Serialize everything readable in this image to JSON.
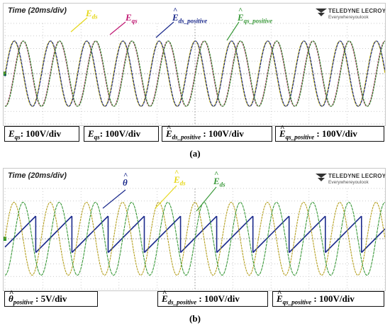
{
  "chart_data": [
    {
      "type": "line",
      "panel": "(a)",
      "time_label": "Time (20ms/div)",
      "grid": true,
      "x_divisions": 10,
      "y_divisions": 8,
      "cycles_shown": 10.5,
      "signal_labels": [
        {
          "symbol": "E",
          "hat": false,
          "sub": "ds",
          "color": "#e6d81c"
        },
        {
          "symbol": "E",
          "hat": false,
          "sub": "qs",
          "color": "#c01873"
        },
        {
          "symbol": "E",
          "hat": true,
          "sub": "ds_positive",
          "color": "#1b2a8c"
        },
        {
          "symbol": "E",
          "hat": true,
          "sub": "qs_positive",
          "color": "#3c9a3c"
        }
      ],
      "series": [
        {
          "name": "Eds",
          "color": "#c8b400",
          "amplitude_div": 2.6,
          "phase_deg": 0
        },
        {
          "name": "Eqs",
          "color": "#b02a62",
          "amplitude_div": 2.6,
          "phase_deg": -90
        },
        {
          "name": "Eds_positive",
          "color": "#1b2a8c",
          "amplitude_div": 2.6,
          "phase_deg": -5
        },
        {
          "name": "Eqs_positive",
          "color": "#2f8f2f",
          "amplitude_div": 2.6,
          "phase_deg": -95
        }
      ],
      "scales": [
        {
          "symbol": "E",
          "hat": false,
          "sub": "qs",
          "text": ": 100V/div"
        },
        {
          "symbol": "E",
          "hat": false,
          "sub": "qs",
          "text": ": 100V/div"
        },
        {
          "symbol": "E",
          "hat": true,
          "sub": "ds_positive",
          "text": " : 100V/div"
        },
        {
          "symbol": "E",
          "hat": true,
          "sub": "qs_positive",
          "text": " : 100V/div"
        }
      ],
      "caption": "(a)"
    },
    {
      "type": "line",
      "panel": "(b)",
      "time_label": "Time (20ms/div)",
      "grid": true,
      "x_divisions": 10,
      "y_divisions": 8,
      "cycles_shown": 10.5,
      "signal_labels": [
        {
          "symbol": "θ",
          "hat": true,
          "sub": "",
          "color": "#1b2a8c"
        },
        {
          "symbol": "E",
          "hat": true,
          "sub": "ds",
          "color": "#e6d81c"
        },
        {
          "symbol": "E",
          "hat": true,
          "sub": "ds",
          "color": "#3c9a3c"
        }
      ],
      "series": [
        {
          "name": "theta_positive",
          "color": "#1b2a8c",
          "kind": "sawtooth"
        },
        {
          "name": "Eds_positive",
          "color": "#b5a020",
          "amplitude_div": 2.9,
          "phase_deg": 0
        },
        {
          "name": "Eqs_positive",
          "color": "#3c9a3c",
          "amplitude_div": 2.9,
          "phase_deg": -90
        }
      ],
      "scales": [
        {
          "symbol": "θ",
          "hat": true,
          "sub": "positive",
          "text": " : 5V/div"
        },
        {
          "symbol": "E",
          "hat": true,
          "sub": "ds_positive",
          "text": " : 100V/div"
        },
        {
          "symbol": "E",
          "hat": true,
          "sub": "qs_positive",
          "text": " : 100V/div"
        }
      ],
      "caption": "(b)"
    }
  ],
  "logo": {
    "brand": "TELEDYNE LECROY",
    "slogan": "Everywhereyoulook"
  }
}
